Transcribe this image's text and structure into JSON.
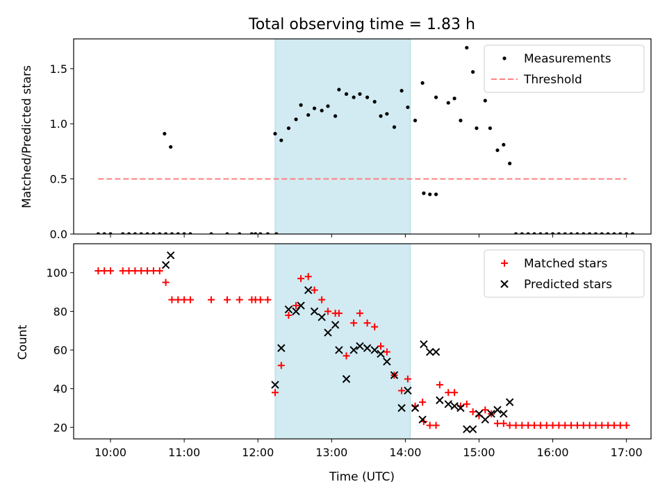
{
  "figure": {
    "title": "Total observing time = 1.83 h"
  },
  "chart_data": [
    {
      "type": "scatter",
      "title": "Total observing time = 1.83 h",
      "xlabel": "",
      "ylabel": "Matched/Predicted stars",
      "xlim": [
        "09:30",
        "17:20"
      ],
      "ylim": [
        0,
        1.77
      ],
      "y_ticks": [
        0.0,
        0.5,
        1.0,
        1.5
      ],
      "x_ticks": [
        "10:00",
        "11:00",
        "12:00",
        "13:00",
        "14:00",
        "15:00",
        "16:00",
        "17:00"
      ],
      "shaded_span": {
        "start": "12:14",
        "end": "14:04",
        "color": "#add8e6"
      },
      "legend": {
        "position": "upper right",
        "entries": [
          "Measurements",
          "Threshold"
        ]
      },
      "series": [
        {
          "name": "Measurements",
          "marker": "dot",
          "color": "#000000",
          "points": [
            [
              "09:50",
              0
            ],
            [
              "09:55",
              0
            ],
            [
              "10:00",
              0
            ],
            [
              "10:10",
              0
            ],
            [
              "10:15",
              0
            ],
            [
              "10:20",
              0
            ],
            [
              "10:25",
              0
            ],
            [
              "10:30",
              0
            ],
            [
              "10:35",
              0
            ],
            [
              "10:40",
              0
            ],
            [
              "10:45",
              0
            ],
            [
              "10:50",
              0
            ],
            [
              "10:44",
              0.91
            ],
            [
              "10:49",
              0.79
            ],
            [
              "10:55",
              0
            ],
            [
              "11:00",
              0
            ],
            [
              "11:05",
              0
            ],
            [
              "11:22",
              0
            ],
            [
              "11:35",
              0
            ],
            [
              "11:45",
              0
            ],
            [
              "11:55",
              0
            ],
            [
              "11:58",
              0
            ],
            [
              "12:02",
              0
            ],
            [
              "12:08",
              0
            ],
            [
              "12:15",
              0
            ],
            [
              "12:14",
              0.91
            ],
            [
              "12:19",
              0.85
            ],
            [
              "12:25",
              0.96
            ],
            [
              "12:31",
              1.04
            ],
            [
              "12:35",
              1.17
            ],
            [
              "12:41",
              1.08
            ],
            [
              "12:46",
              1.14
            ],
            [
              "12:52",
              1.12
            ],
            [
              "12:57",
              1.16
            ],
            [
              "13:03",
              1.07
            ],
            [
              "13:06",
              1.31
            ],
            [
              "13:12",
              1.27
            ],
            [
              "13:18",
              1.24
            ],
            [
              "13:23",
              1.27
            ],
            [
              "13:29",
              1.24
            ],
            [
              "13:35",
              1.2
            ],
            [
              "13:40",
              1.07
            ],
            [
              "13:45",
              1.09
            ],
            [
              "13:51",
              0.97
            ],
            [
              "13:57",
              1.3
            ],
            [
              "14:02",
              1.15
            ],
            [
              "14:08",
              1.03
            ],
            [
              "14:14",
              1.37
            ],
            [
              "14:15",
              0.37
            ],
            [
              "14:20",
              0.36
            ],
            [
              "14:25",
              0.36
            ],
            [
              "14:25",
              1.24
            ],
            [
              "14:35",
              1.19
            ],
            [
              "14:40",
              1.23
            ],
            [
              "14:45",
              1.03
            ],
            [
              "14:50",
              1.69
            ],
            [
              "14:55",
              1.47
            ],
            [
              "14:58",
              0.96
            ],
            [
              "15:05",
              1.21
            ],
            [
              "15:09",
              0.96
            ],
            [
              "15:15",
              0.76
            ],
            [
              "15:20",
              0.81
            ],
            [
              "15:25",
              0.64
            ],
            [
              "15:30",
              0
            ],
            [
              "15:35",
              0
            ],
            [
              "15:40",
              0
            ],
            [
              "15:45",
              0
            ],
            [
              "15:50",
              0
            ],
            [
              "15:55",
              0
            ],
            [
              "16:00",
              0
            ],
            [
              "16:05",
              0
            ],
            [
              "16:10",
              0
            ],
            [
              "16:15",
              0
            ],
            [
              "16:20",
              0
            ],
            [
              "16:25",
              0
            ],
            [
              "16:30",
              0
            ],
            [
              "16:35",
              0
            ],
            [
              "16:40",
              0
            ],
            [
              "16:45",
              0
            ],
            [
              "16:50",
              0
            ],
            [
              "16:55",
              0
            ],
            [
              "17:00",
              0
            ],
            [
              "17:05",
              0
            ]
          ]
        },
        {
          "name": "Threshold",
          "marker": "dashed-line",
          "color": "#ff7f7f",
          "points": [
            [
              "09:50",
              0.5
            ],
            [
              "17:00",
              0.5
            ]
          ]
        }
      ]
    },
    {
      "type": "scatter",
      "title": "",
      "xlabel": "Time (UTC)",
      "ylabel": "Count",
      "xlim": [
        "09:30",
        "17:20"
      ],
      "ylim": [
        14,
        115
      ],
      "y_ticks": [
        20,
        40,
        60,
        80,
        100
      ],
      "x_ticks": [
        "10:00",
        "11:00",
        "12:00",
        "13:00",
        "14:00",
        "15:00",
        "16:00",
        "17:00"
      ],
      "shaded_span": {
        "start": "12:14",
        "end": "14:04",
        "color": "#add8e6"
      },
      "legend": {
        "position": "upper right",
        "entries": [
          "Matched stars",
          "Predicted stars"
        ]
      },
      "series": [
        {
          "name": "Matched stars",
          "marker": "plus",
          "color": "#ff0000",
          "points": [
            [
              "09:50",
              101
            ],
            [
              "09:55",
              101
            ],
            [
              "10:00",
              101
            ],
            [
              "10:10",
              101
            ],
            [
              "10:15",
              101
            ],
            [
              "10:20",
              101
            ],
            [
              "10:25",
              101
            ],
            [
              "10:30",
              101
            ],
            [
              "10:35",
              101
            ],
            [
              "10:40",
              101
            ],
            [
              "10:45",
              95
            ],
            [
              "10:50",
              86
            ],
            [
              "10:55",
              86
            ],
            [
              "11:00",
              86
            ],
            [
              "11:05",
              86
            ],
            [
              "11:22",
              86
            ],
            [
              "11:35",
              86
            ],
            [
              "11:45",
              86
            ],
            [
              "11:55",
              86
            ],
            [
              "11:58",
              86
            ],
            [
              "12:02",
              86
            ],
            [
              "12:08",
              86
            ],
            [
              "12:14",
              38
            ],
            [
              "12:19",
              52
            ],
            [
              "12:25",
              78
            ],
            [
              "12:31",
              83
            ],
            [
              "12:35",
              97
            ],
            [
              "12:41",
              98
            ],
            [
              "12:46",
              91
            ],
            [
              "12:52",
              86
            ],
            [
              "12:57",
              80
            ],
            [
              "13:03",
              79
            ],
            [
              "13:06",
              79
            ],
            [
              "13:12",
              57
            ],
            [
              "13:18",
              74
            ],
            [
              "13:23",
              79
            ],
            [
              "13:29",
              74
            ],
            [
              "13:35",
              72
            ],
            [
              "13:40",
              62
            ],
            [
              "13:45",
              59
            ],
            [
              "13:51",
              47
            ],
            [
              "13:57",
              39
            ],
            [
              "14:02",
              45
            ],
            [
              "14:08",
              31
            ],
            [
              "14:14",
              33
            ],
            [
              "14:15",
              23
            ],
            [
              "14:20",
              21
            ],
            [
              "14:25",
              21
            ],
            [
              "14:28",
              42
            ],
            [
              "14:35",
              38
            ],
            [
              "14:40",
              38
            ],
            [
              "14:45",
              31
            ],
            [
              "14:50",
              32
            ],
            [
              "14:55",
              28
            ],
            [
              "15:00",
              26
            ],
            [
              "15:05",
              29
            ],
            [
              "15:10",
              27
            ],
            [
              "15:15",
              22
            ],
            [
              "15:20",
              22
            ],
            [
              "15:25",
              21
            ],
            [
              "15:30",
              21
            ],
            [
              "15:35",
              21
            ],
            [
              "15:40",
              21
            ],
            [
              "15:45",
              21
            ],
            [
              "15:50",
              21
            ],
            [
              "15:55",
              21
            ],
            [
              "16:00",
              21
            ],
            [
              "16:05",
              21
            ],
            [
              "16:10",
              21
            ],
            [
              "16:15",
              21
            ],
            [
              "16:20",
              21
            ],
            [
              "16:25",
              21
            ],
            [
              "16:30",
              21
            ],
            [
              "16:35",
              21
            ],
            [
              "16:40",
              21
            ],
            [
              "16:45",
              21
            ],
            [
              "16:50",
              21
            ],
            [
              "16:55",
              21
            ],
            [
              "17:00",
              21
            ]
          ]
        },
        {
          "name": "Predicted stars",
          "marker": "x",
          "color": "#000000",
          "points": [
            [
              "10:45",
              104
            ],
            [
              "10:49",
              109
            ],
            [
              "12:14",
              42
            ],
            [
              "12:19",
              61
            ],
            [
              "12:25",
              81
            ],
            [
              "12:31",
              80
            ],
            [
              "12:35",
              83
            ],
            [
              "12:41",
              91
            ],
            [
              "12:46",
              80
            ],
            [
              "12:52",
              77
            ],
            [
              "12:57",
              69
            ],
            [
              "13:03",
              73
            ],
            [
              "13:06",
              60
            ],
            [
              "13:12",
              45
            ],
            [
              "13:18",
              60
            ],
            [
              "13:23",
              62
            ],
            [
              "13:29",
              61
            ],
            [
              "13:35",
              60
            ],
            [
              "13:40",
              58
            ],
            [
              "13:45",
              54
            ],
            [
              "13:51",
              47
            ],
            [
              "13:57",
              30
            ],
            [
              "14:02",
              39
            ],
            [
              "14:08",
              30
            ],
            [
              "14:14",
              24
            ],
            [
              "14:15",
              63
            ],
            [
              "14:20",
              59
            ],
            [
              "14:25",
              59
            ],
            [
              "14:28",
              34
            ],
            [
              "14:35",
              32
            ],
            [
              "14:40",
              31
            ],
            [
              "14:45",
              30
            ],
            [
              "14:50",
              19
            ],
            [
              "14:55",
              19
            ],
            [
              "15:00",
              27
            ],
            [
              "15:05",
              24
            ],
            [
              "15:10",
              27
            ],
            [
              "15:15",
              29
            ],
            [
              "15:20",
              27
            ],
            [
              "15:25",
              33
            ]
          ]
        }
      ]
    }
  ]
}
